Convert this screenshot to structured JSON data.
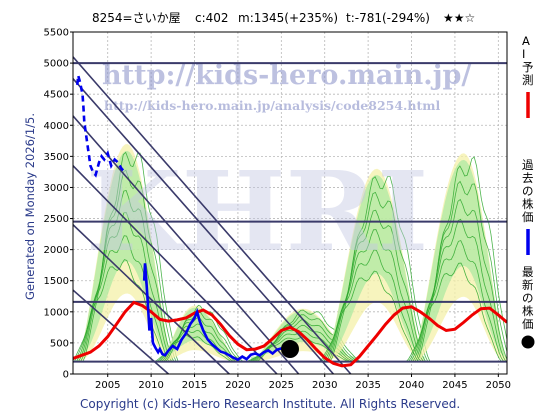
{
  "header": {
    "title": "8254=さいか屋",
    "stat_c": "c:402",
    "stat_m": "m:1345(+235%)",
    "stat_t": "t:-781(-294%)",
    "stars": "★★☆"
  },
  "watermark": {
    "url": "http://kids-hero.main.jp/",
    "analysis_url": "http://kids-hero.main.jp/analysis/code8254.html",
    "big": "KHRI"
  },
  "side_text": "Generated on Monday 2026/1/5.",
  "footer": "Copyright (c) Kids-Hero Research Institute. All Rights Reserved.",
  "legend": [
    {
      "label": "AI予測",
      "color": "#ee0000",
      "marker": "line"
    },
    {
      "label": "過去の株価",
      "color": "#0000ee",
      "marker": "line"
    },
    {
      "label": "最新の株価",
      "color": "#000000",
      "marker": "dot"
    }
  ],
  "chart_data": {
    "type": "line",
    "xlim": [
      2001,
      2051
    ],
    "ylim": [
      0,
      5500
    ],
    "x_ticks": [
      2005,
      2010,
      2015,
      2020,
      2025,
      2030,
      2035,
      2040,
      2045,
      2050
    ],
    "y_ticks": [
      0,
      500,
      1000,
      1500,
      2000,
      2500,
      3000,
      3500,
      4000,
      4500,
      5000,
      5500
    ],
    "grid": true,
    "horizontal_levels": [
      5000,
      2450,
      1160,
      200
    ],
    "latest_price": {
      "x": 2026.0,
      "y": 402
    },
    "past_price": [
      [
        2001.5,
        4650
      ],
      [
        2001.6,
        4800
      ],
      [
        2001.8,
        4700
      ],
      [
        2002.1,
        4500
      ],
      [
        2002.2,
        4300
      ],
      [
        2002.3,
        4050
      ],
      [
        2003.0,
        3350
      ],
      [
        2003.3,
        3250
      ],
      [
        2003.6,
        3200
      ],
      [
        2004.0,
        3400
      ],
      [
        2004.3,
        3500
      ],
      [
        2004.6,
        3450
      ],
      [
        2005.0,
        3550
      ],
      [
        2005.4,
        3350
      ],
      [
        2005.8,
        3450
      ],
      [
        2006.2,
        3400
      ],
      [
        2006.6,
        3300
      ],
      [
        2007.0,
        3250
      ],
      [
        2009.2,
        1500
      ],
      [
        2009.3,
        1780
      ],
      [
        2009.4,
        1600
      ],
      [
        2009.6,
        1200
      ],
      [
        2009.8,
        700
      ],
      [
        2010.0,
        900
      ],
      [
        2010.2,
        500
      ],
      [
        2010.5,
        420
      ],
      [
        2010.8,
        350
      ],
      [
        2011.0,
        400
      ],
      [
        2011.3,
        320
      ],
      [
        2011.6,
        300
      ],
      [
        2012.0,
        380
      ],
      [
        2012.5,
        450
      ],
      [
        2013.0,
        400
      ],
      [
        2013.5,
        550
      ],
      [
        2014.0,
        650
      ],
      [
        2014.5,
        800
      ],
      [
        2015.0,
        900
      ],
      [
        2015.3,
        1000
      ],
      [
        2015.6,
        850
      ],
      [
        2016.0,
        700
      ],
      [
        2016.5,
        560
      ],
      [
        2017.0,
        480
      ],
      [
        2017.5,
        420
      ],
      [
        2018.0,
        360
      ],
      [
        2018.5,
        340
      ],
      [
        2019.0,
        300
      ],
      [
        2019.5,
        260
      ],
      [
        2020.0,
        230
      ],
      [
        2020.5,
        280
      ],
      [
        2021.0,
        240
      ],
      [
        2021.5,
        310
      ],
      [
        2022.0,
        330
      ],
      [
        2022.5,
        300
      ],
      [
        2023.0,
        350
      ],
      [
        2023.5,
        380
      ],
      [
        2024.0,
        330
      ],
      [
        2024.5,
        390
      ],
      [
        2025.0,
        410
      ],
      [
        2025.5,
        400
      ],
      [
        2026.0,
        402
      ]
    ],
    "ai_forecast": [
      [
        2001,
        250
      ],
      [
        2002,
        300
      ],
      [
        2003,
        350
      ],
      [
        2004,
        450
      ],
      [
        2005,
        600
      ],
      [
        2006,
        800
      ],
      [
        2007,
        1000
      ],
      [
        2008,
        1150
      ],
      [
        2009,
        1100
      ],
      [
        2010,
        1000
      ],
      [
        2011,
        880
      ],
      [
        2012,
        850
      ],
      [
        2013,
        870
      ],
      [
        2014,
        900
      ],
      [
        2015,
        980
      ],
      [
        2016,
        1030
      ],
      [
        2017,
        950
      ],
      [
        2018,
        800
      ],
      [
        2019,
        620
      ],
      [
        2020,
        480
      ],
      [
        2021,
        390
      ],
      [
        2022,
        400
      ],
      [
        2023,
        450
      ],
      [
        2024,
        570
      ],
      [
        2025,
        700
      ],
      [
        2026,
        750
      ],
      [
        2027,
        680
      ],
      [
        2028,
        550
      ],
      [
        2029,
        400
      ],
      [
        2030,
        260
      ],
      [
        2031,
        170
      ],
      [
        2032,
        130
      ],
      [
        2033,
        150
      ],
      [
        2034,
        280
      ],
      [
        2035,
        450
      ],
      [
        2036,
        620
      ],
      [
        2037,
        800
      ],
      [
        2038,
        950
      ],
      [
        2039,
        1060
      ],
      [
        2040,
        1080
      ],
      [
        2041,
        1000
      ],
      [
        2042,
        900
      ],
      [
        2043,
        780
      ],
      [
        2044,
        700
      ],
      [
        2045,
        720
      ],
      [
        2046,
        830
      ],
      [
        2047,
        950
      ],
      [
        2048,
        1050
      ],
      [
        2049,
        1060
      ],
      [
        2050,
        950
      ],
      [
        2051,
        830
      ]
    ],
    "band_peaks": [
      {
        "x": 2007.2,
        "y": 3700,
        "start": 2001.5,
        "end": 2012.5
      },
      {
        "x": 2015.0,
        "y": 1100,
        "start": 2011.0,
        "end": 2020.0
      },
      {
        "x": 2027.5,
        "y": 1050,
        "start": 2021.5,
        "end": 2033.5
      },
      {
        "x": 2036.0,
        "y": 3300,
        "start": 2030.0,
        "end": 2041.5
      },
      {
        "x": 2046.0,
        "y": 3550,
        "start": 2040.0,
        "end": 2051.0
      }
    ],
    "trend_lines": [
      [
        [
          2001,
          5100
        ],
        [
          2033,
          0
        ]
      ],
      [
        [
          2001,
          4750
        ],
        [
          2031,
          0
        ]
      ],
      [
        [
          2001,
          4150
        ],
        [
          2027,
          0
        ]
      ],
      [
        [
          2001,
          3350
        ],
        [
          2024.5,
          0
        ]
      ],
      [
        [
          2001,
          2400
        ],
        [
          2019,
          0
        ]
      ],
      [
        [
          2001,
          1350
        ],
        [
          2012,
          0
        ]
      ]
    ]
  }
}
